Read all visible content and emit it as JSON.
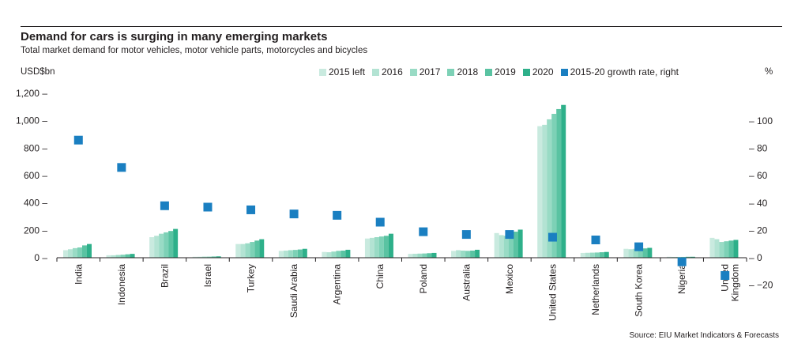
{
  "chart_data": {
    "type": "bar",
    "title": "Demand for cars is surging in many emerging markets",
    "subtitle": "Total market demand for motor vehicles, motor vehicle parts, motorcycles and bicycles",
    "ylabel_left": "USD$bn",
    "ylabel_right": "%",
    "source": "Source: EIU Market Indicators & Forecasts",
    "legend_position": "top-right",
    "ylim_left": [
      0,
      1200
    ],
    "ylim_right": [
      -20,
      120
    ],
    "yticks_left": [
      "1,200",
      "1,000",
      "800",
      "600",
      "400",
      "200",
      "0"
    ],
    "yticks_right": [
      "100",
      "80",
      "60",
      "40",
      "20",
      "0",
      "-20"
    ],
    "categories": [
      "India",
      "Indonesia",
      "Brazil",
      "Israel",
      "Turkey",
      "Saudi Arabia",
      "Argentina",
      "China",
      "Poland",
      "Australia",
      "Mexico",
      "United States",
      "Netherlands",
      "South Korea",
      "Nigeria",
      "United Kingdom"
    ],
    "series": [
      {
        "name": "2015 left",
        "color": "#c9eadf",
        "axis": "left",
        "values": [
          55,
          18,
          150,
          7,
          100,
          50,
          42,
          140,
          28,
          50,
          180,
          960,
          35,
          65,
          7,
          145
        ]
      },
      {
        "name": "2016",
        "color": "#b3e3d3",
        "axis": "left",
        "values": [
          62,
          18,
          160,
          7,
          100,
          52,
          40,
          145,
          29,
          55,
          165,
          970,
          36,
          62,
          6,
          135
        ]
      },
      {
        "name": "2017",
        "color": "#99dbc5",
        "axis": "left",
        "values": [
          70,
          20,
          175,
          8,
          105,
          55,
          45,
          150,
          30,
          52,
          160,
          1010,
          37,
          65,
          6,
          115
        ]
      },
      {
        "name": "2018",
        "color": "#7dd1b6",
        "axis": "left",
        "values": [
          75,
          22,
          185,
          8,
          115,
          57,
          50,
          155,
          31,
          50,
          175,
          1050,
          38,
          70,
          6,
          120
        ]
      },
      {
        "name": "2019",
        "color": "#5ac3a2",
        "axis": "left",
        "values": [
          90,
          25,
          195,
          9,
          125,
          60,
          52,
          160,
          33,
          52,
          190,
          1085,
          40,
          68,
          7,
          125
        ]
      },
      {
        "name": "2020",
        "color": "#2eb08a",
        "axis": "left",
        "values": [
          100,
          28,
          210,
          10,
          135,
          65,
          58,
          175,
          35,
          58,
          205,
          1115,
          42,
          72,
          7,
          130
        ]
      },
      {
        "name": "2015-20 growth rate, right",
        "color": "#1a7fc1",
        "axis": "right",
        "type": "scatter",
        "values": [
          86,
          66,
          38,
          37,
          35,
          32,
          31,
          26,
          19,
          17,
          17,
          15,
          13,
          8,
          -3,
          -13
        ]
      }
    ]
  }
}
